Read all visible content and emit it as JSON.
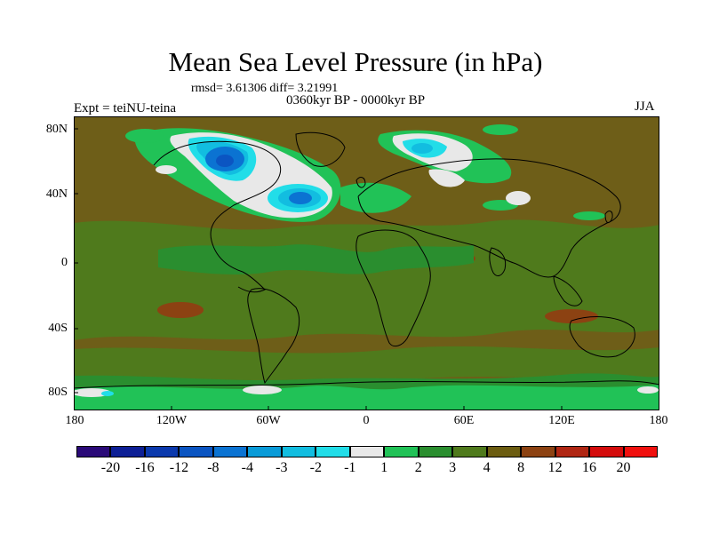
{
  "map": {
    "title": "Mean Sea Level Pressure (in hPa)",
    "stats": "rmsd= 3.61306 diff= 3.21991",
    "period": "0360kyr BP - 0000kyr BP",
    "experiment": "Expt = teiNU-teina",
    "season": "JJA",
    "lat_labels": [
      "80N",
      "40N",
      "0",
      "40S",
      "80S"
    ],
    "lon_labels": [
      "180",
      "120W",
      "60W",
      "0",
      "60E",
      "120E",
      "180"
    ]
  },
  "legend": {
    "labels": [
      "-20",
      "-16",
      "-12",
      "-8",
      "-4",
      "-3",
      "-2",
      "-1",
      "1",
      "2",
      "3",
      "4",
      "8",
      "12",
      "16",
      "20"
    ],
    "colors": [
      "#2a0a78",
      "#0d1f95",
      "#0b39ad",
      "#0b55c2",
      "#0b73d2",
      "#0a9bd8",
      "#12bde0",
      "#22dde8",
      "#e8e8e8",
      "#21c257",
      "#2a8e2f",
      "#4f7a1c",
      "#6b5c10",
      "#8c4212",
      "#b02613",
      "#d40c0c",
      "#f0100e"
    ]
  },
  "palette": {
    "ocean_brown": "#6e5e18",
    "olive": "#4f7a1c",
    "dark_brown": "#8c4212",
    "green": "#2a8e2f",
    "bright_green": "#21c257",
    "white": "#e8e8e8",
    "cyan": "#22dde8",
    "light_blue": "#12bde0",
    "blue": "#0b73d2",
    "dark_blue": "#0b39ad"
  }
}
